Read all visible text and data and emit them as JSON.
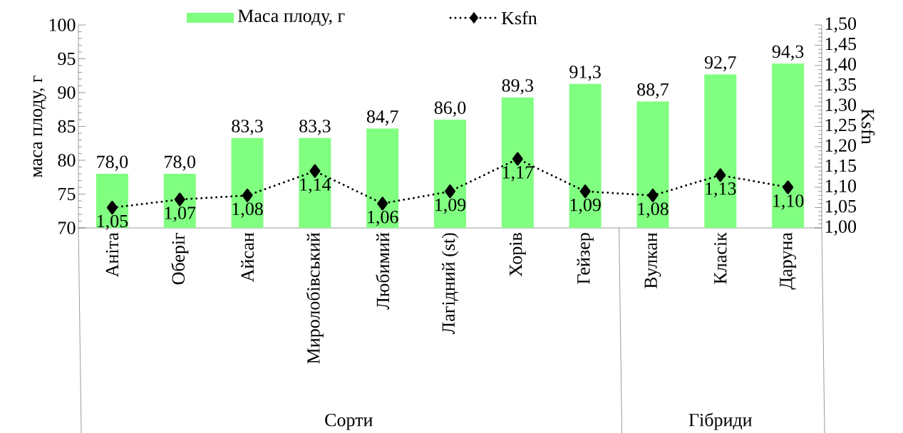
{
  "chart_data": {
    "type": "bar",
    "categories": [
      "Аніта",
      "Оберіг",
      "Айсан",
      "Миролобівський",
      "Любимий",
      "Лагідний (st)",
      "Хорів",
      "Гейзер",
      "Вулкан",
      "Класік",
      "Даруна"
    ],
    "ylabel": "маса плоду, г",
    "y2label": "Ksfn",
    "legend": "top",
    "ylim": [
      70,
      100
    ],
    "yticks": [
      70,
      75,
      80,
      85,
      90,
      95,
      100
    ],
    "y2lim": [
      1.0,
      1.5
    ],
    "y2ticks": [
      {
        "value": 1.0,
        "label": "1,00"
      },
      {
        "value": 1.05,
        "label": "1,05"
      },
      {
        "value": 1.1,
        "label": "1,10"
      },
      {
        "value": 1.15,
        "label": "1,15"
      },
      {
        "value": 1.2,
        "label": "1,20"
      },
      {
        "value": 1.25,
        "label": "1,25"
      },
      {
        "value": 1.3,
        "label": "1,30"
      },
      {
        "value": 1.35,
        "label": "1,35"
      },
      {
        "value": 1.4,
        "label": "1,40"
      },
      {
        "value": 1.45,
        "label": "1,45"
      },
      {
        "value": 1.5,
        "label": "1,50"
      }
    ],
    "annotations": [
      "Сорти",
      "Гібриди"
    ],
    "series": [
      {
        "name": "Маса плоду, г",
        "color": "#80ff80",
        "values": [
          78.0,
          78.0,
          83.3,
          83.3,
          84.7,
          86.0,
          89.3,
          91.3,
          88.7,
          92.7,
          94.3
        ],
        "value_labels": [
          "78,0",
          "78,0",
          "83,3",
          "83,3",
          "84,7",
          "86,0",
          "89,3",
          "91,3",
          "88,7",
          "92,7",
          "94,3"
        ]
      },
      {
        "name": "Ksfn",
        "type": "line",
        "axis": "y2",
        "color": "#000000",
        "marker": "diamond",
        "line_style": "dotted",
        "values": [
          1.05,
          1.07,
          1.08,
          1.14,
          1.06,
          1.09,
          1.17,
          1.09,
          1.08,
          1.13,
          1.1
        ],
        "value_labels": [
          "1,05",
          "1,07",
          "1,08",
          "1,14",
          "1,06",
          "1,09",
          "1,17",
          "1,09",
          "1,08",
          "1,13",
          "1,10"
        ]
      }
    ]
  }
}
